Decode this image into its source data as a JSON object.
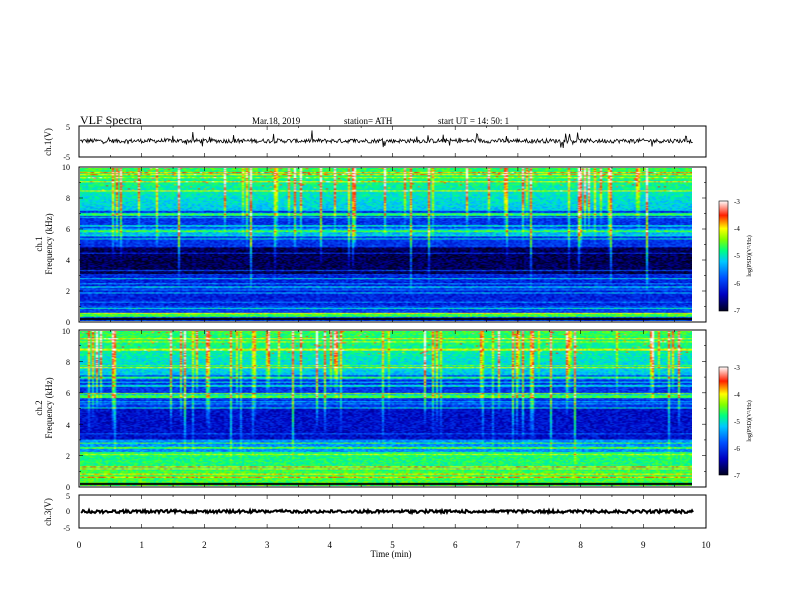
{
  "header": {
    "title": "VLF  Spectra",
    "date": "Mar.18, 2019",
    "station": "station= ATH",
    "start": "start  UT  =   14: 50: 1"
  },
  "chart_data": [
    {
      "id": "ch1-waveform",
      "type": "line",
      "ylabel": "ch.1(V)",
      "ylim": [
        -5,
        5
      ],
      "yticks": [
        5,
        -5
      ],
      "xlim": [
        0,
        10
      ],
      "baseline_v": 0.2,
      "active_until_min": 9.8
    },
    {
      "id": "ch1-spectrogram",
      "type": "heatmap",
      "ylabel": "ch.1\nFrequency  (kHz)",
      "ylim": [
        0,
        10
      ],
      "yticks": [
        0,
        2,
        4,
        6,
        8,
        10
      ],
      "xlim": [
        0,
        10
      ],
      "active_until_min": 9.8,
      "colorbar": {
        "label": "log(PSD)(V²/Hz)",
        "range": [
          -7,
          -3
        ],
        "ticks": [
          "-3",
          "-4",
          "-5",
          "-6",
          "-7"
        ]
      }
    },
    {
      "id": "ch2-spectrogram",
      "type": "heatmap",
      "ylabel": "ch.2\nFrequency  (kHz)",
      "ylim": [
        0,
        10
      ],
      "yticks": [
        0,
        2,
        4,
        6,
        8,
        10
      ],
      "xlim": [
        0,
        10
      ],
      "active_until_min": 9.8,
      "colorbar": {
        "label": "log(PSD)(V²/Hz)",
        "range": [
          -7,
          -3
        ],
        "ticks": [
          "-3",
          "-4",
          "-5",
          "-6",
          "-7"
        ]
      }
    },
    {
      "id": "ch3-waveform",
      "type": "line",
      "ylabel": "ch.3(V)",
      "ylim": [
        -5,
        5
      ],
      "yticks": [
        5,
        0,
        -5
      ],
      "xlim": [
        0,
        10
      ],
      "xticks": [
        0,
        1,
        2,
        3,
        4,
        5,
        6,
        7,
        8,
        9,
        10
      ],
      "xlabel": "Time  (min)",
      "baseline_v": 0,
      "active_until_min": 9.8
    }
  ]
}
